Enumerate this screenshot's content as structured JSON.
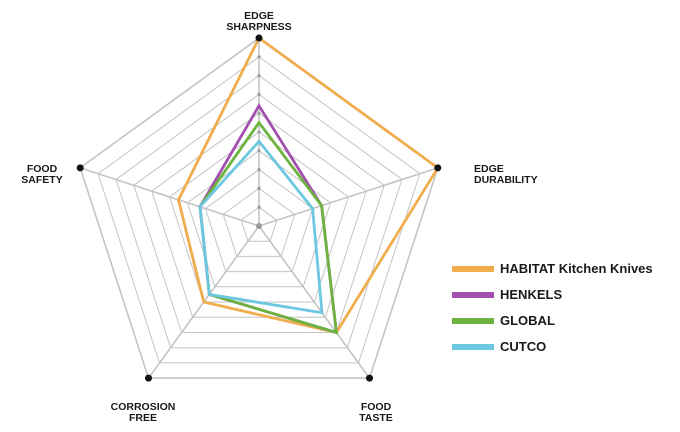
{
  "chart_data": {
    "type": "radar",
    "axes": [
      {
        "label_lines": [
          "EDGE",
          "SHARPNESS"
        ]
      },
      {
        "label_lines": [
          "EDGE",
          "DURABILITY"
        ]
      },
      {
        "label_lines": [
          "FOOD",
          "TASTE"
        ]
      },
      {
        "label_lines": [
          "CORROSION",
          "FREE"
        ]
      },
      {
        "label_lines": [
          "FOOD",
          "SAFETY"
        ]
      }
    ],
    "scale": {
      "min": 0,
      "max": 10,
      "rings": 10
    },
    "grid": true,
    "legend_position": "right",
    "series": [
      {
        "name": "HABITAT Kitchen Knives",
        "color": "#f0ad4e",
        "values": [
          10,
          10,
          7,
          5,
          4.5
        ]
      },
      {
        "name": "HENKELS",
        "color": "#a24fb0",
        "values": [
          6.4,
          3.5,
          7,
          4.5,
          3.3
        ]
      },
      {
        "name": "GLOBAL",
        "color": "#6cb33f",
        "values": [
          5.5,
          3.5,
          7,
          4.5,
          3.3
        ]
      },
      {
        "name": "CUTCO",
        "color": "#6cc7e1",
        "values": [
          4.5,
          3,
          5.7,
          4.5,
          3.3
        ]
      }
    ]
  }
}
